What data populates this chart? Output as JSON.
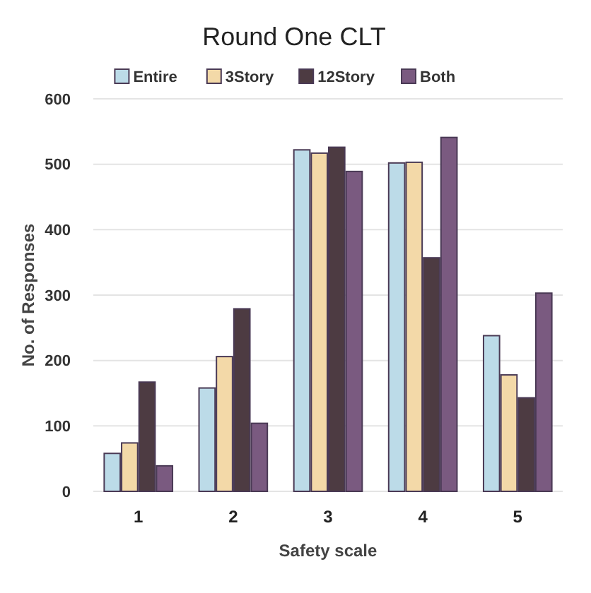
{
  "chart_data": {
    "type": "bar",
    "title": "Round One CLT",
    "xlabel": "Safety scale",
    "ylabel": "No. of Responses",
    "categories": [
      "1",
      "2",
      "3",
      "4",
      "5"
    ],
    "series": [
      {
        "name": "Entire",
        "color": "#bcdbe8",
        "values": [
          58,
          158,
          522,
          502,
          238
        ]
      },
      {
        "name": "3Story",
        "color": "#f3d9a8",
        "values": [
          74,
          206,
          517,
          503,
          178
        ]
      },
      {
        "name": "12Story",
        "color": "#4d3b42",
        "values": [
          167,
          279,
          526,
          357,
          143
        ]
      },
      {
        "name": "Both",
        "color": "#7a5a80",
        "values": [
          39,
          104,
          489,
          541,
          303
        ]
      }
    ],
    "ylim": [
      0,
      600
    ],
    "yticks": [
      0,
      100,
      200,
      300,
      400,
      500,
      600
    ],
    "grid": "y",
    "legend": "top"
  }
}
